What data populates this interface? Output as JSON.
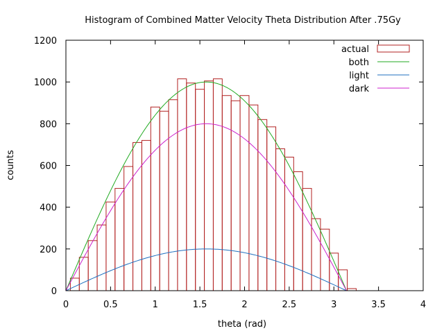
{
  "chart_data": {
    "type": "bar",
    "title": "Histogram of Combined Matter Velocity Theta Distribution After .75Gy",
    "xlabel": "theta (rad)",
    "ylabel": "counts",
    "xlim": [
      0,
      4
    ],
    "ylim": [
      0,
      1200
    ],
    "xticks": [
      "0",
      "0.5",
      "1",
      "1.5",
      "2",
      "2.5",
      "3",
      "3.5",
      "4"
    ],
    "xtick_values": [
      0,
      0.5,
      1,
      1.5,
      2,
      2.5,
      3,
      3.5,
      4
    ],
    "yticks": [
      "0",
      "200",
      "400",
      "600",
      "800",
      "1000",
      "1200"
    ],
    "ytick_values": [
      0,
      200,
      400,
      600,
      800,
      1000,
      1200
    ],
    "grid": false,
    "legend_position": "top-right",
    "histogram": {
      "name": "actual",
      "color": "#b22222",
      "bin_width": 0.1,
      "bin_starts": [
        0.05,
        0.15,
        0.25,
        0.35,
        0.45,
        0.55,
        0.65,
        0.75,
        0.85,
        0.95,
        1.05,
        1.15,
        1.25,
        1.35,
        1.45,
        1.55,
        1.65,
        1.75,
        1.85,
        1.95,
        2.05,
        2.15,
        2.25,
        2.35,
        2.45,
        2.55,
        2.65,
        2.75,
        2.85,
        2.95,
        3.05,
        3.15
      ],
      "values": [
        60,
        160,
        240,
        315,
        425,
        490,
        595,
        710,
        720,
        880,
        860,
        915,
        1015,
        995,
        965,
        1005,
        1015,
        935,
        910,
        935,
        890,
        820,
        785,
        680,
        640,
        570,
        490,
        345,
        295,
        180,
        100,
        10
      ]
    },
    "series": [
      {
        "name": "both",
        "color": "#22aa22",
        "function": "1000*sin(x)",
        "x_range": [
          0,
          3.14159
        ]
      },
      {
        "name": "light",
        "color": "#1f6fbf",
        "function": "200*sin(x)",
        "x_range": [
          0,
          3.14159
        ]
      },
      {
        "name": "dark",
        "color": "#cc22cc",
        "function": "800*sin(x)",
        "x_range": [
          0,
          3.14159
        ]
      }
    ]
  }
}
